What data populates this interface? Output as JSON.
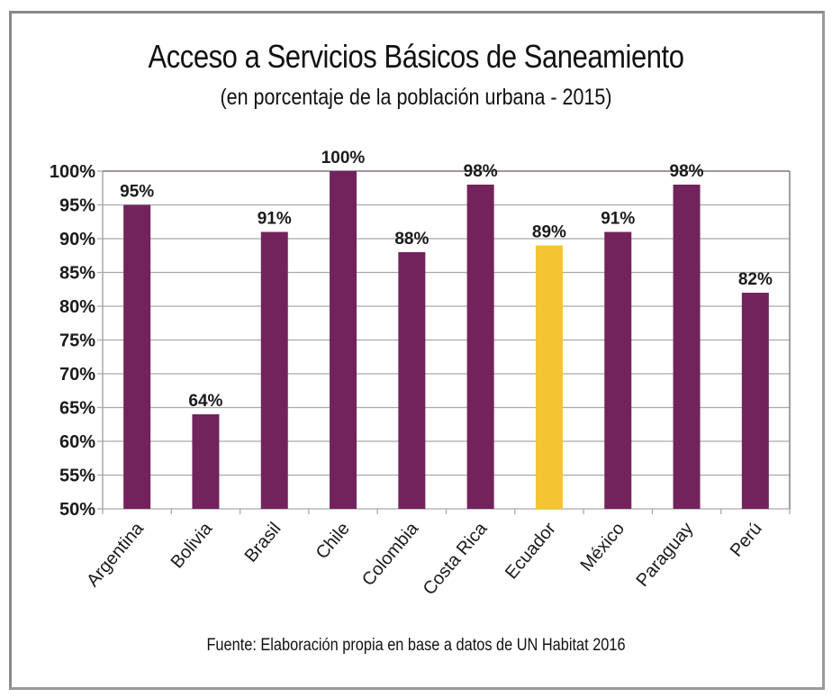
{
  "chart_data": {
    "type": "bar",
    "title": "Acceso a Servicios Básicos de Saneamiento",
    "subtitle": "(en porcentaje de la población urbana - 2015)",
    "source": "Fuente: Elaboración propia en base a datos de UN Habitat 2016",
    "xlabel": "",
    "ylabel": "",
    "ylim": [
      50,
      100
    ],
    "y_ticks": [
      50,
      55,
      60,
      65,
      70,
      75,
      80,
      85,
      90,
      95,
      100
    ],
    "y_tick_labels": [
      "50%",
      "55%",
      "60%",
      "65%",
      "70%",
      "75%",
      "80%",
      "85%",
      "90%",
      "95%",
      "100%"
    ],
    "grid": true,
    "legend": "none",
    "categories": [
      "Argentina",
      "Bolivia",
      "Brasil",
      "Chile",
      "Colombia",
      "Costa Rica",
      "Ecuador",
      "México",
      "Paraguay",
      "Perú"
    ],
    "values": [
      95,
      64,
      91,
      100,
      88,
      98,
      89,
      91,
      98,
      82
    ],
    "data_labels": [
      "95%",
      "64%",
      "91%",
      "100%",
      "88%",
      "98%",
      "89%",
      "91%",
      "98%",
      "82%"
    ],
    "highlight_category": "Ecuador",
    "colors": {
      "bar": "#72235c",
      "highlight": "#f5c433",
      "grid": "#a9a9a9",
      "plot_border": "#8a7a90"
    }
  }
}
